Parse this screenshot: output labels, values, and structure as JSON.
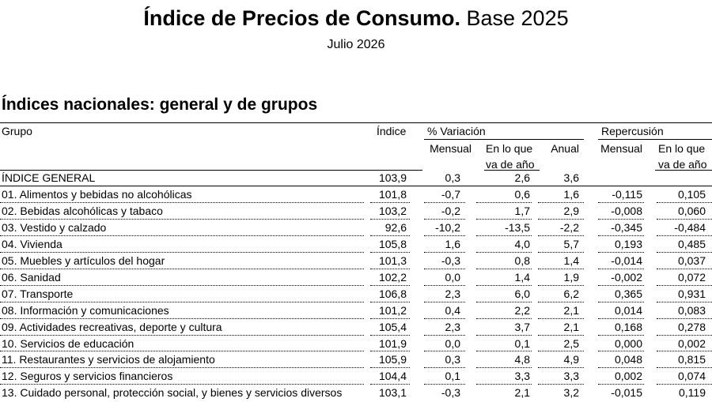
{
  "header": {
    "title_bold": "Índice de Precios de Consumo.",
    "title_rest": "Base 2025",
    "subtitle": "Julio 2026"
  },
  "section_title": "Índices nacionales: general y de grupos",
  "table": {
    "col_grupo": "Grupo",
    "col_indice": "Índice",
    "col_variacion": "% Variación",
    "col_repercusion": "Repercusión",
    "sub_mensual": "Mensual",
    "sub_en_lo_que_1": "En lo que",
    "sub_en_lo_que_2": "va de año",
    "sub_anual": "Anual",
    "rep_mensual": "Mensual",
    "rep_en_lo_que_1": "En lo que",
    "rep_en_lo_que_2": "va de año",
    "rows": [
      {
        "grupo": "ÍNDICE GENERAL",
        "indice": "103,9",
        "mensual": "0,3",
        "anual_ytd": "2,6",
        "anual": "3,6",
        "rep_mensual": "",
        "rep_ytd": ""
      },
      {
        "grupo": "01. Alimentos y bebidas no alcohólicas",
        "indice": "101,8",
        "mensual": "-0,7",
        "anual_ytd": "0,6",
        "anual": "1,6",
        "rep_mensual": "-0,115",
        "rep_ytd": "0,105"
      },
      {
        "grupo": "02. Bebidas alcohólicas y tabaco",
        "indice": "103,2",
        "mensual": "-0,2",
        "anual_ytd": "1,7",
        "anual": "2,9",
        "rep_mensual": "-0,008",
        "rep_ytd": "0,060"
      },
      {
        "grupo": "03. Vestido y calzado",
        "indice": "92,6",
        "mensual": "-10,2",
        "anual_ytd": "-13,5",
        "anual": "-2,2",
        "rep_mensual": "-0,345",
        "rep_ytd": "-0,484"
      },
      {
        "grupo": "04. Vivienda",
        "indice": "105,8",
        "mensual": "1,6",
        "anual_ytd": "4,0",
        "anual": "5,7",
        "rep_mensual": "0,193",
        "rep_ytd": "0,485"
      },
      {
        "grupo": "05. Muebles y artículos del hogar",
        "indice": "101,3",
        "mensual": "-0,3",
        "anual_ytd": "0,8",
        "anual": "1,4",
        "rep_mensual": "-0,014",
        "rep_ytd": "0,037"
      },
      {
        "grupo": "06. Sanidad",
        "indice": "102,2",
        "mensual": "0,0",
        "anual_ytd": "1,4",
        "anual": "1,9",
        "rep_mensual": "-0,002",
        "rep_ytd": "0,072"
      },
      {
        "grupo": "07. Transporte",
        "indice": "106,8",
        "mensual": "2,3",
        "anual_ytd": "6,0",
        "anual": "6,2",
        "rep_mensual": "0,365",
        "rep_ytd": "0,931"
      },
      {
        "grupo": "08. Información y comunicaciones",
        "indice": "101,2",
        "mensual": "0,4",
        "anual_ytd": "2,2",
        "anual": "2,1",
        "rep_mensual": "0,014",
        "rep_ytd": "0,083"
      },
      {
        "grupo": "09. Actividades recreativas, deporte y cultura",
        "indice": "105,4",
        "mensual": "2,3",
        "anual_ytd": "3,7",
        "anual": "2,1",
        "rep_mensual": "0,168",
        "rep_ytd": "0,278"
      },
      {
        "grupo": "10. Servicios de educación",
        "indice": "101,9",
        "mensual": "0,0",
        "anual_ytd": "0,1",
        "anual": "2,5",
        "rep_mensual": "0,000",
        "rep_ytd": "0,002"
      },
      {
        "grupo": "11. Restaurantes y servicios de alojamiento",
        "indice": "105,9",
        "mensual": "0,3",
        "anual_ytd": "4,8",
        "anual": "4,9",
        "rep_mensual": "0,048",
        "rep_ytd": "0,815"
      },
      {
        "grupo": "12. Seguros y servicios financieros",
        "indice": "104,4",
        "mensual": "0,1",
        "anual_ytd": "3,3",
        "anual": "3,3",
        "rep_mensual": "0,002",
        "rep_ytd": "0,074"
      },
      {
        "grupo": "13. Cuidado personal, protección social, y bienes y servicios diversos",
        "indice": "103,1",
        "mensual": "-0,3",
        "anual_ytd": "2,1",
        "anual": "3,2",
        "rep_mensual": "-0,015",
        "rep_ytd": "0,119"
      }
    ]
  }
}
